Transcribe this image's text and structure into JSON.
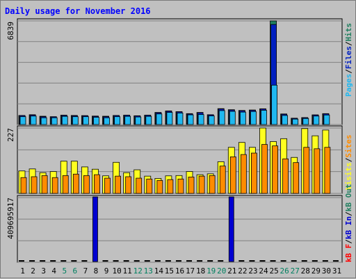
{
  "title": "Daily usage for November 2016",
  "colors": {
    "background": "#c0c0c0",
    "title": "#0000ff",
    "hits": "#1f7f5f",
    "files": "#0020c0",
    "pages": "#20b8f0",
    "visits": "#ffff20",
    "sites": "#ff8c00",
    "kb_in": "#0000d0",
    "kb_out": "#1f7f5f",
    "kb_f": "#ff0000",
    "weekend": "#008060",
    "weekday": "#000000"
  },
  "chart_data": [
    {
      "type": "bar",
      "name": "hits-files-pages",
      "ymax_label": "6839",
      "legend": [
        "Pages",
        "/",
        "Files",
        "/",
        "Hits"
      ],
      "categories": [
        "1",
        "2",
        "3",
        "4",
        "5",
        "6",
        "7",
        "8",
        "9",
        "10",
        "11",
        "12",
        "13",
        "14",
        "15",
        "16",
        "17",
        "18",
        "19",
        "20",
        "21",
        "22",
        "23",
        "24",
        "25",
        "26",
        "27",
        "28",
        "29",
        "30",
        "31"
      ],
      "series": [
        {
          "name": "Hits",
          "values": [
            600,
            650,
            550,
            520,
            620,
            600,
            590,
            560,
            550,
            600,
            620,
            580,
            620,
            800,
            900,
            850,
            720,
            800,
            650,
            1050,
            980,
            930,
            960,
            1040,
            6839,
            700,
            420,
            460,
            640,
            720,
            0
          ]
        },
        {
          "name": "Files",
          "values": [
            590,
            630,
            520,
            510,
            600,
            580,
            580,
            540,
            520,
            590,
            610,
            570,
            610,
            780,
            880,
            840,
            700,
            780,
            640,
            1030,
            960,
            910,
            940,
            1030,
            6600,
            680,
            410,
            450,
            630,
            710,
            0
          ]
        },
        {
          "name": "Pages",
          "values": [
            520,
            560,
            450,
            450,
            540,
            520,
            520,
            480,
            450,
            520,
            540,
            500,
            540,
            700,
            800,
            760,
            640,
            660,
            570,
            920,
            870,
            820,
            860,
            940,
            2600,
            600,
            360,
            400,
            560,
            630,
            0
          ]
        }
      ]
    },
    {
      "type": "bar",
      "name": "visits-sites",
      "ymax_label": "227",
      "legend": [
        "Visits",
        "/",
        "Sites"
      ],
      "categories": [
        "1",
        "2",
        "3",
        "4",
        "5",
        "6",
        "7",
        "8",
        "9",
        "10",
        "11",
        "12",
        "13",
        "14",
        "15",
        "16",
        "17",
        "18",
        "19",
        "20",
        "21",
        "22",
        "23",
        "24",
        "25",
        "26",
        "27",
        "28",
        "29",
        "30",
        "31"
      ],
      "series": [
        {
          "name": "Visits",
          "values": [
            78,
            85,
            72,
            76,
            112,
            112,
            92,
            84,
            61,
            108,
            72,
            82,
            60,
            52,
            61,
            62,
            76,
            65,
            68,
            110,
            160,
            177,
            160,
            227,
            180,
            190,
            125,
            225,
            200,
            220,
            0
          ]
        },
        {
          "name": "Sites",
          "values": [
            55,
            58,
            62,
            55,
            62,
            67,
            62,
            65,
            53,
            60,
            58,
            53,
            50,
            45,
            48,
            50,
            57,
            60,
            62,
            95,
            127,
            135,
            140,
            170,
            165,
            120,
            107,
            160,
            155,
            160,
            0
          ]
        }
      ]
    },
    {
      "type": "bar",
      "name": "kbytes",
      "ymax_label": "409695917",
      "legend": [
        "kB F",
        "/",
        "kB In",
        "/",
        "kB Out"
      ],
      "categories": [
        "1",
        "2",
        "3",
        "4",
        "5",
        "6",
        "7",
        "8",
        "9",
        "10",
        "11",
        "12",
        "13",
        "14",
        "15",
        "16",
        "17",
        "18",
        "19",
        "20",
        "21",
        "22",
        "23",
        "24",
        "25",
        "26",
        "27",
        "28",
        "29",
        "30",
        "31"
      ],
      "series": [
        {
          "name": "kB In",
          "values": [
            0,
            0,
            0,
            0,
            0,
            0,
            0,
            409695917,
            0,
            0,
            0,
            0,
            0,
            0,
            0,
            0,
            0,
            0,
            0,
            0,
            409695917,
            0,
            0,
            0,
            0,
            0,
            0,
            0,
            0,
            0,
            0
          ]
        },
        {
          "name": "kB Out",
          "values": [
            1,
            1,
            1,
            1,
            1,
            1,
            1,
            1,
            1,
            1,
            1,
            1,
            1,
            1,
            1,
            1,
            1,
            1,
            1,
            1,
            1,
            1,
            1,
            1,
            1,
            1,
            1,
            1,
            1,
            1,
            1
          ]
        }
      ]
    }
  ],
  "weekend_days": [
    5,
    6,
    12,
    13,
    19,
    20,
    26,
    27
  ]
}
